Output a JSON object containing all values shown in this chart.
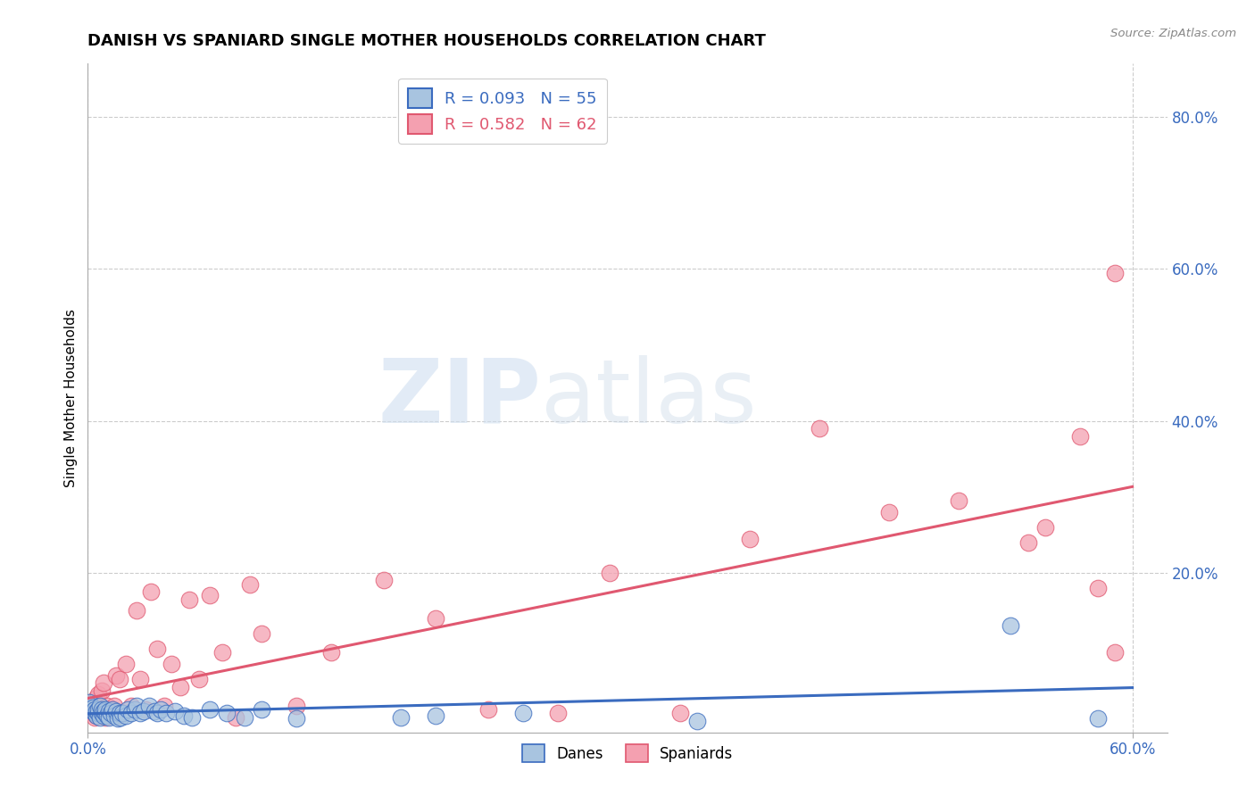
{
  "title": "DANISH VS SPANIARD SINGLE MOTHER HOUSEHOLDS CORRELATION CHART",
  "source": "Source: ZipAtlas.com",
  "ylabel": "Single Mother Households",
  "xlim": [
    0.0,
    0.62
  ],
  "ylim": [
    -0.01,
    0.87
  ],
  "xticks": [
    0.0,
    0.6
  ],
  "xticklabels": [
    "0.0%",
    "60.0%"
  ],
  "ytick_positions": [
    0.2,
    0.4,
    0.6,
    0.8
  ],
  "ytick_labels": [
    "20.0%",
    "40.0%",
    "60.0%",
    "80.0%"
  ],
  "danes_R": 0.093,
  "danes_N": 55,
  "spaniards_R": 0.582,
  "spaniards_N": 62,
  "danes_color": "#a8c4e0",
  "spaniards_color": "#f4a0b0",
  "danes_line_color": "#3a6bbf",
  "spaniards_line_color": "#e05870",
  "background_color": "#ffffff",
  "watermark_zip": "ZIP",
  "watermark_atlas": "atlas",
  "danes_x": [
    0.001,
    0.002,
    0.003,
    0.003,
    0.004,
    0.004,
    0.005,
    0.005,
    0.006,
    0.006,
    0.007,
    0.007,
    0.008,
    0.008,
    0.009,
    0.009,
    0.01,
    0.01,
    0.011,
    0.012,
    0.012,
    0.013,
    0.014,
    0.015,
    0.016,
    0.017,
    0.018,
    0.019,
    0.02,
    0.022,
    0.023,
    0.025,
    0.027,
    0.028,
    0.03,
    0.032,
    0.035,
    0.038,
    0.04,
    0.042,
    0.045,
    0.05,
    0.055,
    0.06,
    0.07,
    0.08,
    0.09,
    0.1,
    0.12,
    0.18,
    0.2,
    0.25,
    0.35,
    0.53,
    0.58
  ],
  "danes_y": [
    0.03,
    0.025,
    0.018,
    0.022,
    0.015,
    0.02,
    0.012,
    0.018,
    0.015,
    0.02,
    0.01,
    0.025,
    0.015,
    0.02,
    0.012,
    0.018,
    0.015,
    0.02,
    0.012,
    0.018,
    0.01,
    0.015,
    0.02,
    0.012,
    0.018,
    0.008,
    0.015,
    0.01,
    0.015,
    0.012,
    0.02,
    0.015,
    0.02,
    0.025,
    0.015,
    0.018,
    0.025,
    0.018,
    0.015,
    0.02,
    0.015,
    0.018,
    0.012,
    0.01,
    0.02,
    0.015,
    0.01,
    0.02,
    0.008,
    0.01,
    0.012,
    0.015,
    0.005,
    0.13,
    0.008
  ],
  "spaniards_x": [
    0.001,
    0.002,
    0.002,
    0.003,
    0.003,
    0.004,
    0.004,
    0.005,
    0.005,
    0.006,
    0.006,
    0.007,
    0.007,
    0.008,
    0.008,
    0.009,
    0.009,
    0.01,
    0.011,
    0.012,
    0.013,
    0.014,
    0.015,
    0.016,
    0.017,
    0.018,
    0.02,
    0.022,
    0.025,
    0.028,
    0.03,
    0.033,
    0.036,
    0.04,
    0.044,
    0.048,
    0.053,
    0.058,
    0.064,
    0.07,
    0.077,
    0.085,
    0.093,
    0.1,
    0.12,
    0.14,
    0.17,
    0.2,
    0.23,
    0.27,
    0.3,
    0.34,
    0.38,
    0.42,
    0.46,
    0.5,
    0.54,
    0.55,
    0.57,
    0.58,
    0.59,
    0.59
  ],
  "spaniards_y": [
    0.022,
    0.02,
    0.025,
    0.015,
    0.03,
    0.01,
    0.018,
    0.035,
    0.012,
    0.04,
    0.015,
    0.025,
    0.018,
    0.045,
    0.012,
    0.02,
    0.055,
    0.01,
    0.025,
    0.018,
    0.015,
    0.02,
    0.025,
    0.065,
    0.012,
    0.06,
    0.015,
    0.08,
    0.025,
    0.15,
    0.06,
    0.02,
    0.175,
    0.1,
    0.025,
    0.08,
    0.05,
    0.165,
    0.06,
    0.17,
    0.095,
    0.01,
    0.185,
    0.12,
    0.025,
    0.095,
    0.19,
    0.14,
    0.02,
    0.015,
    0.2,
    0.015,
    0.245,
    0.39,
    0.28,
    0.295,
    0.24,
    0.26,
    0.38,
    0.18,
    0.595,
    0.095
  ],
  "danes_trend": [
    0.0,
    0.6,
    0.018,
    0.022
  ],
  "spaniards_trend": [
    0.0,
    0.6,
    0.005,
    0.375
  ]
}
